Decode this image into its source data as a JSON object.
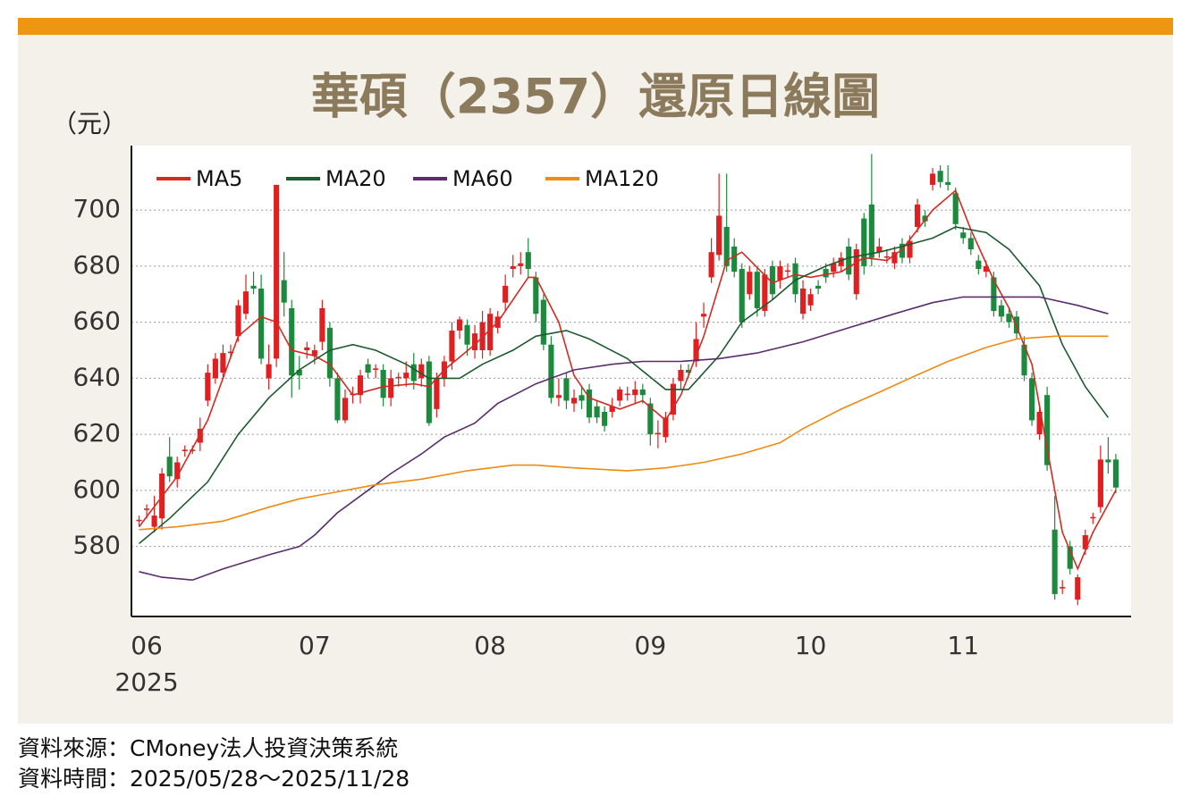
{
  "chart_data": {
    "type": "candlestick",
    "title": "華碩（2357）還原日線圖",
    "y_unit": "（元）",
    "up_color": "#e02020",
    "down_color": "#1b8a3c",
    "grid": true,
    "xlim": [
      -1,
      130
    ],
    "ylim": [
      555,
      723
    ],
    "yticks": [
      580,
      600,
      620,
      640,
      660,
      680,
      700
    ],
    "xticks": [
      {
        "value": 1,
        "label": "06"
      },
      {
        "value": 23,
        "label": "07"
      },
      {
        "value": 46,
        "label": "08"
      },
      {
        "value": 67,
        "label": "09"
      },
      {
        "value": 88,
        "label": "10"
      },
      {
        "value": 108,
        "label": "11"
      }
    ],
    "x_year": "2025",
    "open": [
      589,
      593,
      587,
      590,
      612,
      604,
      614,
      614,
      617,
      632,
      640,
      642,
      649,
      655,
      663,
      673,
      672,
      640,
      647,
      675,
      665,
      643,
      650,
      648,
      653,
      658,
      640,
      625,
      634,
      634,
      645,
      643,
      643,
      633,
      640,
      640,
      645,
      640,
      646,
      629,
      640,
      646,
      657,
      659,
      650,
      650,
      650,
      658,
      667,
      679,
      680,
      685,
      676,
      668,
      652,
      633,
      640,
      631,
      634,
      636,
      630,
      628,
      628,
      632,
      634,
      634,
      636,
      631,
      620,
      619,
      627,
      639,
      643,
      646,
      662,
      676,
      684,
      694,
      687,
      679,
      670,
      678,
      664,
      680,
      675,
      678,
      681,
      663,
      666,
      673,
      679,
      678,
      680,
      687,
      670,
      697,
      702,
      685,
      683,
      681,
      688,
      683,
      694,
      698,
      709,
      714,
      710,
      706,
      692,
      690,
      682,
      678,
      676,
      666,
      663,
      662,
      652,
      640,
      620,
      634,
      586,
      565,
      580,
      561,
      579,
      590,
      594,
      611,
      611
    ],
    "high": [
      591,
      595,
      598,
      608,
      619,
      612,
      616,
      616,
      626,
      645,
      649,
      652,
      652,
      668,
      677,
      678,
      677,
      652,
      709,
      685,
      668,
      648,
      653,
      652,
      668,
      660,
      642,
      636,
      637,
      643,
      647,
      645,
      645,
      643,
      642,
      646,
      649,
      647,
      648,
      642,
      648,
      660,
      662,
      661,
      659,
      664,
      665,
      664,
      677,
      684,
      685,
      690,
      678,
      670,
      655,
      640,
      642,
      636,
      637,
      638,
      632,
      630,
      633,
      637,
      637,
      639,
      638,
      633,
      625,
      628,
      640,
      645,
      645,
      660,
      667,
      690,
      713,
      713,
      690,
      681,
      680,
      680,
      679,
      682,
      682,
      681,
      683,
      675,
      672,
      675,
      681,
      683,
      685,
      690,
      688,
      699,
      720,
      690,
      686,
      687,
      690,
      691,
      704,
      700,
      715,
      716,
      716,
      708,
      694,
      692,
      684,
      682,
      678,
      668,
      665,
      664,
      655,
      642,
      630,
      637,
      598,
      568,
      582,
      570,
      586,
      592,
      616,
      619,
      613
    ],
    "low": [
      587,
      590,
      585,
      586,
      603,
      601,
      612,
      613,
      614,
      630,
      638,
      640,
      647,
      653,
      661,
      670,
      645,
      636,
      644,
      662,
      633,
      636,
      647,
      645,
      650,
      637,
      624,
      624,
      631,
      631,
      640,
      640,
      630,
      630,
      637,
      637,
      636,
      637,
      623,
      626,
      637,
      643,
      654,
      648,
      647,
      647,
      648,
      656,
      664,
      676,
      677,
      676,
      660,
      650,
      631,
      630,
      629,
      628,
      629,
      624,
      624,
      621,
      626,
      630,
      632,
      631,
      631,
      616,
      615,
      617,
      625,
      636,
      640,
      644,
      658,
      674,
      682,
      678,
      676,
      658,
      668,
      662,
      662,
      668,
      672,
      676,
      667,
      661,
      664,
      670,
      674,
      676,
      678,
      675,
      668,
      677,
      680,
      683,
      681,
      679,
      681,
      681,
      692,
      694,
      707,
      708,
      707,
      693,
      688,
      684,
      677,
      676,
      662,
      660,
      658,
      654,
      639,
      623,
      618,
      607,
      561,
      563,
      570,
      559,
      577,
      588,
      592,
      606,
      599
    ],
    "close": [
      589.5,
      593.5,
      591,
      606,
      605,
      610,
      614.5,
      614.5,
      622,
      642,
      647,
      649,
      649.5,
      666,
      671,
      672,
      647,
      645,
      709,
      667,
      641,
      641,
      651,
      650,
      665,
      640,
      625,
      633,
      634.5,
      641,
      642,
      643.5,
      633,
      640,
      640.5,
      642,
      639,
      645,
      624,
      640,
      646,
      657,
      661,
      652,
      656,
      660,
      663,
      662,
      673,
      680,
      681,
      679,
      663,
      652,
      633,
      634,
      632,
      633,
      632,
      626,
      626,
      623,
      630,
      636,
      634.5,
      636,
      634,
      620,
      620.5,
      626,
      638,
      643,
      642,
      654,
      663,
      685,
      698,
      680,
      678,
      660,
      678,
      665,
      677,
      670,
      680,
      678.5,
      670,
      672,
      670,
      672,
      676,
      681,
      683,
      677,
      686,
      680,
      683,
      687,
      683.5,
      685,
      683,
      689,
      702,
      696,
      713,
      710,
      709,
      695,
      690,
      686,
      679,
      680,
      664,
      662,
      660,
      656,
      641,
      625,
      628,
      609,
      563,
      565.5,
      572,
      569,
      584,
      590.5,
      611,
      610,
      601
    ],
    "series": [
      {
        "name": "MA5",
        "color": "#d42a22",
        "x": [
          0,
          5,
          9,
          13,
          16,
          18,
          20,
          23,
          25,
          28,
          32,
          36,
          38,
          40,
          44,
          47,
          51,
          52,
          55,
          57,
          59,
          63,
          66,
          69,
          71,
          74,
          77,
          79,
          83,
          86,
          88,
          92,
          95,
          98,
          100,
          104,
          107,
          109,
          112,
          114,
          117,
          119,
          121,
          123,
          125,
          128
        ],
        "values": [
          587,
          605,
          625,
          655,
          662,
          660,
          650,
          648,
          645,
          634,
          637,
          638,
          637,
          643,
          652,
          660,
          676,
          676,
          660,
          641,
          633,
          629,
          632,
          625,
          634,
          655,
          682,
          685,
          674,
          677,
          676,
          678,
          683,
          682,
          686,
          700,
          707,
          693,
          675,
          665,
          645,
          615,
          585,
          572,
          585,
          600
        ]
      },
      {
        "name": "MA20",
        "color": "#1d5a2e",
        "x": [
          0,
          4,
          9,
          13,
          17,
          21,
          25,
          28,
          31,
          35,
          38,
          42,
          45,
          49,
          52,
          56,
          59,
          64,
          69,
          72,
          76,
          79,
          83,
          86,
          90,
          93,
          97,
          100,
          104,
          107,
          111,
          114,
          118,
          121,
          124,
          127
        ],
        "values": [
          581,
          590,
          603,
          620,
          633,
          643,
          650,
          652,
          650,
          645,
          640,
          640,
          645,
          650,
          655,
          657,
          654,
          647,
          636,
          636,
          648,
          660,
          668,
          675,
          680,
          683,
          685,
          687,
          690,
          694,
          692,
          686,
          673,
          652,
          637,
          626
        ]
      },
      {
        "name": "MA60",
        "color": "#5a2c6e",
        "x": [
          0,
          3,
          7,
          11,
          17,
          21,
          23,
          26,
          30,
          33,
          37,
          40,
          44,
          47,
          52,
          57,
          62,
          66,
          71,
          76,
          81,
          87,
          93,
          99,
          104,
          108,
          113,
          118,
          123,
          127
        ],
        "values": [
          571,
          569,
          568,
          572,
          577,
          580,
          584,
          592,
          600,
          606,
          613,
          619,
          624,
          631,
          638,
          643,
          645,
          646,
          646,
          647,
          649,
          653,
          658,
          663,
          667,
          669,
          669,
          669,
          666,
          663
        ]
      },
      {
        "name": "MA120",
        "color": "#ef8a12",
        "x": [
          0,
          5,
          11,
          17,
          21,
          25,
          31,
          37,
          43,
          49,
          52,
          57,
          64,
          69,
          74,
          79,
          84,
          87,
          92,
          97,
          101,
          106,
          111,
          115,
          120,
          127
        ],
        "values": [
          586,
          587,
          589,
          594,
          597,
          599,
          602,
          604,
          607,
          609,
          609,
          608,
          607,
          608,
          610,
          613,
          617,
          622,
          629,
          635,
          640,
          646,
          651,
          654,
          655,
          655
        ]
      }
    ]
  },
  "footer": {
    "source": "資料來源：CMoney法人投資決策系統",
    "period": "資料時間：2025/05/28～2025/11/28"
  }
}
